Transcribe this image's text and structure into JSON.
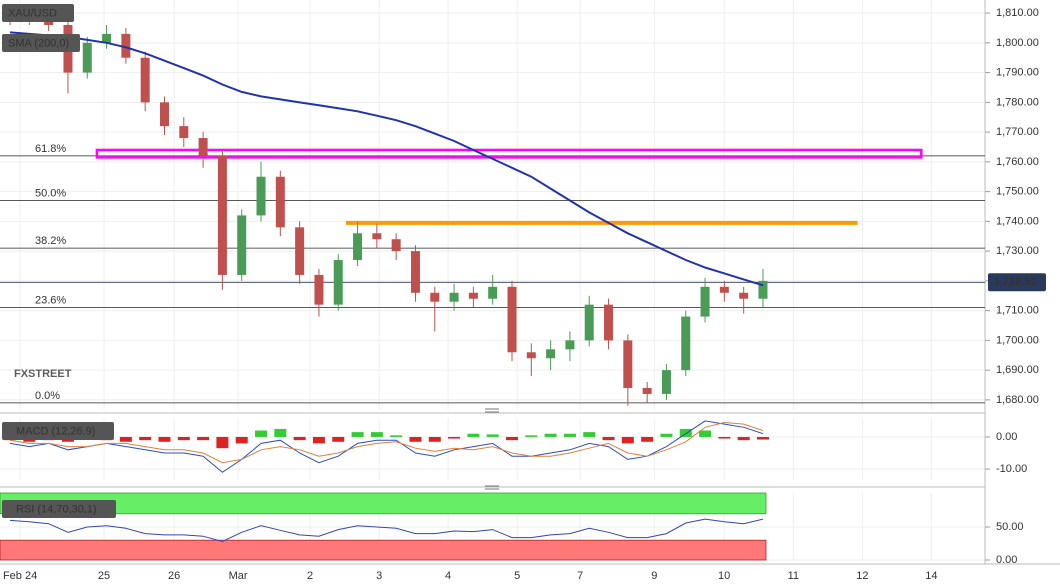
{
  "chart_data": [
    {
      "type": "candlestick",
      "title": "XAU/USD",
      "watermark": "FXSTREET",
      "x": [
        0,
        1,
        2,
        3,
        4,
        5,
        6,
        7,
        8,
        9,
        10,
        11,
        12,
        13,
        14,
        15,
        16,
        17,
        18,
        19,
        20,
        21,
        22,
        23,
        24,
        25,
        26,
        27,
        28,
        29,
        30,
        31,
        32,
        33,
        34,
        35,
        36,
        37,
        38,
        39
      ],
      "open": [
        1812,
        1808,
        1810,
        1806,
        1790,
        1800,
        1803,
        1795,
        1780,
        1772,
        1768,
        1762,
        1722,
        1742,
        1755,
        1738,
        1722,
        1712,
        1727,
        1736,
        1734,
        1730,
        1716,
        1713,
        1716,
        1714,
        1718,
        1696,
        1694,
        1697,
        1700,
        1712,
        1700,
        1684,
        1682,
        1690,
        1708,
        1718,
        1716,
        1714
      ],
      "high": [
        1813,
        1812,
        1812,
        1807,
        1802,
        1806,
        1805,
        1797,
        1782,
        1775,
        1770,
        1764,
        1744,
        1760,
        1757,
        1740,
        1724,
        1729,
        1740,
        1739,
        1736,
        1732,
        1718,
        1719,
        1718,
        1722,
        1720,
        1699,
        1700,
        1703,
        1715,
        1714,
        1702,
        1686,
        1692,
        1710,
        1721,
        1720,
        1718,
        1724
      ],
      "low": [
        1806,
        1806,
        1804,
        1783,
        1788,
        1798,
        1793,
        1777,
        1769,
        1765,
        1758,
        1717,
        1720,
        1740,
        1735,
        1719,
        1708,
        1710,
        1725,
        1731,
        1727,
        1713,
        1703,
        1710,
        1711,
        1712,
        1693,
        1688,
        1690,
        1693,
        1698,
        1697,
        1678,
        1679,
        1680,
        1688,
        1706,
        1713,
        1709,
        1711
      ],
      "close": [
        1808,
        1810,
        1806,
        1790,
        1800,
        1803,
        1795,
        1780,
        1772,
        1768,
        1762,
        1722,
        1742,
        1755,
        1738,
        1722,
        1712,
        1727,
        1736,
        1734,
        1730,
        1716,
        1713,
        1716,
        1714,
        1718,
        1696,
        1694,
        1697,
        1700,
        1712,
        1700,
        1684,
        1682,
        1690,
        1708,
        1718,
        1716,
        1714,
        1720
      ],
      "up_color": "#4a9b55",
      "down_color": "#c0504d",
      "series": [
        {
          "name": "SMA (200,0)",
          "color": "#2233aa",
          "values": [
            1803.5,
            1803,
            1802.5,
            1802,
            1801,
            1800,
            1798.5,
            1796.5,
            1794,
            1791.5,
            1789,
            1786,
            1783.5,
            1782,
            1781,
            1780,
            1779,
            1778,
            1777,
            1775.5,
            1774,
            1772,
            1769.5,
            1767,
            1764,
            1761,
            1758,
            1755,
            1751,
            1747,
            1743,
            1739.5,
            1736,
            1733,
            1730,
            1727,
            1724.5,
            1722.5,
            1720.5,
            1718.5
          ]
        }
      ],
      "fib_levels": [
        {
          "label": "61.8%",
          "value": 1762
        },
        {
          "label": "50.0%",
          "value": 1747
        },
        {
          "label": "38.2%",
          "value": 1731
        },
        {
          "label": "23.6%",
          "value": 1711
        },
        {
          "label": "0.0%",
          "value": 1679
        }
      ],
      "zone": {
        "color": "#ff00ff",
        "x": [
          4.5,
          47.2
        ],
        "y": [
          1761.5,
          1764
        ]
      },
      "resistance": {
        "color": "#ff9900",
        "x": [
          17.4,
          43.9
        ],
        "value": 1739.5
      },
      "last_price": {
        "value": 1719.52,
        "label": "1,719.52"
      },
      "xlim": [
        -0.52,
        50.5
      ],
      "ylim": [
        1676.6,
        1814.4
      ],
      "xticks": [
        {
          "value": 0.52,
          "label": "Feb 24"
        },
        {
          "value": 4.87,
          "label": "25"
        },
        {
          "value": 8.5,
          "label": "26"
        },
        {
          "value": 11.81,
          "label": "Mar"
        },
        {
          "value": 15.54,
          "label": "2"
        },
        {
          "value": 19.12,
          "label": "3"
        },
        {
          "value": 22.69,
          "label": "4"
        },
        {
          "value": 26.27,
          "label": "5"
        },
        {
          "value": 29.53,
          "label": "7"
        },
        {
          "value": 33.37,
          "label": "9"
        },
        {
          "value": 36.99,
          "label": "10"
        },
        {
          "value": 40.57,
          "label": "11"
        },
        {
          "value": 44.15,
          "label": "12"
        },
        {
          "value": 47.72,
          "label": "14"
        }
      ],
      "yticks": [
        {
          "value": 1810,
          "label": "1,810.00"
        },
        {
          "value": 1800,
          "label": "1,800.00"
        },
        {
          "value": 1790,
          "label": "1,790.00"
        },
        {
          "value": 1780,
          "label": "1,780.00"
        },
        {
          "value": 1770,
          "label": "1,770.00"
        },
        {
          "value": 1760,
          "label": "1,760.00"
        },
        {
          "value": 1750,
          "label": "1,750.00"
        },
        {
          "value": 1740,
          "label": "1,740.00"
        },
        {
          "value": 1730,
          "label": "1,730.00"
        },
        {
          "value": 1720,
          "label": "1,720.00"
        },
        {
          "value": 1710,
          "label": "1,710.00"
        },
        {
          "value": 1700,
          "label": "1,700.00"
        },
        {
          "value": 1690,
          "label": "1,690.00"
        },
        {
          "value": 1680,
          "label": "1,680.00"
        }
      ]
    },
    {
      "type": "macd",
      "title": "MACD (12,26,9)",
      "pos_color": "#33cc33",
      "neg_color": "#dd2222",
      "histogram": [
        -1,
        -1.5,
        -1,
        -1.5,
        -0.5,
        -1,
        -1.5,
        -1,
        -1.5,
        -1,
        -1,
        -3.5,
        -2,
        2,
        2.5,
        -1,
        -2,
        -1.5,
        1.5,
        1.5,
        0.5,
        -1.5,
        -1.5,
        -0.5,
        1,
        0.8,
        -1,
        0.5,
        1,
        1,
        1.5,
        -1,
        -2,
        -1.5,
        1,
        2.5,
        2,
        -0.5,
        -1,
        -0.8
      ],
      "series": [
        {
          "color": "#2b4dc4",
          "values": [
            -2,
            -3,
            -2,
            -4,
            -3,
            -2,
            -3,
            -4,
            -5,
            -5,
            -6,
            -11,
            -7,
            -2,
            -1,
            -5,
            -8,
            -6,
            -2,
            -1,
            -1,
            -5,
            -6,
            -4,
            -3,
            -2,
            -6,
            -6,
            -5,
            -4,
            -2,
            -3,
            -7,
            -6,
            -3,
            1,
            5,
            4,
            3,
            1
          ]
        },
        {
          "color": "#e0803a",
          "values": [
            -1,
            -2,
            -2,
            -3,
            -3,
            -2,
            -2,
            -3,
            -4,
            -4,
            -5,
            -8,
            -7,
            -4,
            -3,
            -4,
            -6,
            -5,
            -3,
            -2,
            -1.5,
            -3.5,
            -4.5,
            -3.5,
            -4,
            -3,
            -5,
            -6,
            -6,
            -5,
            -3.5,
            -2,
            -5,
            -6,
            -4,
            -1.5,
            3,
            4.5,
            4,
            2
          ]
        }
      ],
      "ylim": [
        -13.4,
        5.9
      ],
      "yticks": [
        {
          "value": 0,
          "label": "0.00"
        },
        {
          "value": -10,
          "label": "-10.00"
        }
      ]
    },
    {
      "type": "rsi",
      "title": "RSI (14,70,30,1)",
      "color": "#3344bb",
      "values": [
        60,
        58,
        55,
        42,
        50,
        52,
        48,
        40,
        38,
        38,
        36,
        28,
        42,
        52,
        45,
        38,
        36,
        46,
        52,
        50,
        48,
        40,
        40,
        44,
        43,
        46,
        34,
        34,
        38,
        40,
        48,
        42,
        34,
        34,
        40,
        56,
        62,
        58,
        55,
        62
      ],
      "overbought": 70,
      "oversold": 30,
      "overbought_color": "#66ee66",
      "oversold_color": "#ff7777",
      "ylim": [
        0,
        101.5
      ],
      "yticks": [
        {
          "value": 50,
          "label": "50.00"
        },
        {
          "value": 0,
          "label": "0.00"
        }
      ]
    }
  ]
}
